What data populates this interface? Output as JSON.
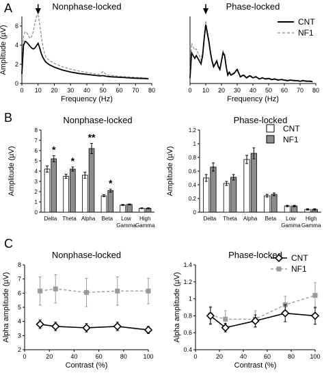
{
  "panels": [
    {
      "letter": "A"
    },
    {
      "letter": "B"
    },
    {
      "letter": "C"
    }
  ],
  "colors": {
    "cnt": "#000000",
    "nf1": "#9a9a9a",
    "cnt_bar": "#ffffff",
    "nf1_bar": "#8c8c8c"
  },
  "chart_data": [
    {
      "id": "A-left",
      "panel": "A",
      "type": "line",
      "title": "Nonphase-locked",
      "xlabel": "Frequency (Hz)",
      "ylabel": "Amplitude (µV)",
      "xlim": [
        0,
        80
      ],
      "ylim": [
        0,
        7
      ],
      "xticks": [
        "0",
        "10",
        "20",
        "30",
        "40",
        "50",
        "60",
        "70",
        "80"
      ],
      "yticks": [
        "0",
        "2",
        "4",
        "6"
      ],
      "arrow_at_x": 10,
      "series": [
        {
          "name": "CNT",
          "style": "solid",
          "x": [
            0,
            1,
            2,
            3,
            4,
            5,
            6,
            7,
            8,
            9,
            10,
            11,
            12,
            13,
            14,
            15,
            17,
            20,
            25,
            30,
            35,
            40,
            45,
            48,
            50,
            52,
            55,
            60,
            65,
            70,
            75,
            78
          ],
          "y": [
            1.0,
            4.0,
            4.4,
            4.3,
            4.1,
            3.9,
            3.7,
            3.6,
            3.7,
            3.95,
            4.2,
            3.7,
            3.1,
            2.7,
            2.4,
            2.2,
            1.95,
            1.7,
            1.4,
            1.2,
            1.05,
            0.95,
            0.85,
            0.8,
            0.82,
            0.75,
            0.7,
            0.65,
            0.6,
            0.55,
            0.52,
            0.5
          ]
        },
        {
          "name": "NF1",
          "style": "dashed",
          "x": [
            0,
            1,
            2,
            3,
            4,
            5,
            6,
            7,
            8,
            9,
            10,
            11,
            12,
            13,
            14,
            15,
            17,
            20,
            25,
            30,
            35,
            40,
            45,
            48,
            50,
            52,
            55,
            60,
            65,
            70,
            75,
            78
          ],
          "y": [
            1.3,
            5.0,
            5.4,
            5.3,
            5.0,
            4.7,
            4.9,
            5.4,
            6.3,
            7.0,
            7.2,
            6.2,
            4.9,
            3.8,
            3.1,
            2.7,
            2.4,
            2.1,
            1.75,
            1.5,
            1.3,
            1.15,
            1.0,
            0.95,
            1.25,
            0.9,
            0.85,
            0.75,
            0.7,
            0.65,
            0.6,
            0.55
          ]
        }
      ]
    },
    {
      "id": "A-right",
      "panel": "A",
      "type": "line",
      "title": "Phase-locked",
      "xlabel": "Frequency (Hz)",
      "ylabel": "",
      "xlim": [
        0,
        80
      ],
      "ylim": [
        0,
        1.2
      ],
      "xticks": [
        "0",
        "10",
        "20",
        "30",
        "40",
        "50",
        "60",
        "70",
        "80"
      ],
      "yticks": [],
      "arrow_at_x": 10,
      "legend": {
        "placement": "top-right",
        "entries": [
          "CNT",
          "NF1"
        ]
      },
      "series": [
        {
          "name": "CNT",
          "style": "solid",
          "x": [
            0,
            1,
            2,
            3,
            4,
            5,
            6,
            7,
            8,
            9,
            10,
            11,
            12,
            13,
            14,
            15,
            16,
            17,
            18,
            19,
            20,
            21,
            22,
            23,
            24,
            25,
            26,
            28,
            30,
            32,
            34,
            36,
            38,
            40,
            42,
            44,
            46,
            48,
            50,
            52,
            54,
            56,
            58,
            60,
            62,
            64,
            66,
            68,
            70,
            72,
            74,
            76,
            78
          ],
          "y": [
            0.1,
            0.55,
            0.5,
            0.45,
            0.5,
            0.45,
            0.4,
            0.35,
            0.5,
            0.8,
            1.05,
            0.9,
            0.75,
            0.55,
            0.4,
            0.3,
            0.35,
            0.4,
            0.3,
            0.25,
            0.4,
            0.55,
            0.5,
            0.3,
            0.15,
            0.2,
            0.15,
            0.18,
            0.25,
            0.12,
            0.15,
            0.1,
            0.14,
            0.1,
            0.12,
            0.08,
            0.1,
            0.08,
            0.09,
            0.07,
            0.08,
            0.06,
            0.07,
            0.06,
            0.05,
            0.06,
            0.05,
            0.05,
            0.04,
            0.05,
            0.04,
            0.04,
            0.03
          ]
        },
        {
          "name": "NF1",
          "style": "dashed",
          "x": [
            0,
            1,
            2,
            3,
            4,
            5,
            6,
            7,
            8,
            9,
            10,
            11,
            12,
            13,
            14,
            15,
            16,
            17,
            18,
            19,
            20,
            21,
            22,
            23,
            24,
            25,
            26,
            28,
            30,
            32,
            34,
            36,
            38,
            40,
            42,
            44,
            46,
            48,
            50,
            52,
            54,
            56,
            58,
            60,
            62,
            64,
            66,
            68,
            70,
            72,
            74,
            76,
            78
          ],
          "y": [
            0.2,
            0.72,
            0.65,
            0.6,
            0.62,
            0.55,
            0.5,
            0.42,
            0.55,
            0.85,
            1.12,
            0.95,
            0.78,
            0.58,
            0.42,
            0.32,
            0.36,
            0.42,
            0.32,
            0.26,
            0.42,
            0.58,
            0.52,
            0.32,
            0.17,
            0.22,
            0.16,
            0.2,
            0.27,
            0.13,
            0.16,
            0.11,
            0.15,
            0.11,
            0.13,
            0.09,
            0.11,
            0.09,
            0.1,
            0.08,
            0.09,
            0.07,
            0.08,
            0.07,
            0.06,
            0.07,
            0.06,
            0.06,
            0.05,
            0.06,
            0.05,
            0.05,
            0.04
          ]
        }
      ]
    },
    {
      "id": "B-left",
      "panel": "B",
      "type": "bar",
      "title": "Nonphase-locked",
      "xlabel": "",
      "ylabel": "Amplitude (µV)",
      "ylim": [
        0,
        8
      ],
      "yticks": [
        "0",
        "1",
        "2",
        "3",
        "4",
        "5",
        "6",
        "7",
        "8"
      ],
      "categories": [
        [
          "Delta"
        ],
        [
          "Theta"
        ],
        [
          "Alpha"
        ],
        [
          "Beta"
        ],
        [
          "Low",
          "Gamma"
        ],
        [
          "High",
          "Gamma"
        ]
      ],
      "series": [
        {
          "name": "CNT",
          "values": [
            4.2,
            3.5,
            3.6,
            1.6,
            0.7,
            0.38
          ],
          "errors": [
            0.3,
            0.2,
            0.3,
            0.1,
            0.05,
            0.04
          ]
        },
        {
          "name": "NF1",
          "values": [
            5.2,
            4.2,
            6.2,
            2.1,
            0.75,
            0.38
          ],
          "errors": [
            0.3,
            0.2,
            0.5,
            0.15,
            0.05,
            0.04
          ]
        }
      ],
      "significance": [
        "*",
        "*",
        "**",
        "*",
        "",
        ""
      ]
    },
    {
      "id": "B-right",
      "panel": "B",
      "type": "bar",
      "title": "Phase-locked",
      "xlabel": "",
      "ylabel": "Amplitude (µV)",
      "ylim": [
        0,
        1.2
      ],
      "yticks": [
        "0",
        "0.2",
        "0.4",
        "0.6",
        "0.8",
        "1",
        "1.2"
      ],
      "categories": [
        [
          "Delta"
        ],
        [
          "Theta"
        ],
        [
          "Alpha"
        ],
        [
          "Beta"
        ],
        [
          "Low",
          "Gamma"
        ],
        [
          "High",
          "Gamma"
        ]
      ],
      "legend": {
        "placement": "top-right",
        "entries": [
          "CNT",
          "NF1"
        ]
      },
      "series": [
        {
          "name": "CNT",
          "values": [
            0.5,
            0.42,
            0.77,
            0.24,
            0.09,
            0.04
          ],
          "errors": [
            0.05,
            0.03,
            0.06,
            0.02,
            0.01,
            0.01
          ]
        },
        {
          "name": "NF1",
          "values": [
            0.66,
            0.51,
            0.86,
            0.26,
            0.09,
            0.04
          ],
          "errors": [
            0.06,
            0.04,
            0.08,
            0.02,
            0.01,
            0.01
          ]
        }
      ]
    },
    {
      "id": "C-left",
      "panel": "C",
      "type": "line",
      "title": "Nonphase-locked",
      "xlabel": "Contrast (%)",
      "ylabel": "Alpha amplitude (µV)",
      "xlim": [
        0,
        100
      ],
      "ylim": [
        2,
        8
      ],
      "xticks": [
        "0",
        "20",
        "40",
        "60",
        "80",
        "100"
      ],
      "yticks": [
        "2",
        "3",
        "4",
        "5",
        "6",
        "7",
        "8"
      ],
      "series": [
        {
          "name": "CNT",
          "style": "solid",
          "marker": "diamond",
          "x": [
            12.5,
            25,
            50,
            75,
            100
          ],
          "y": [
            3.8,
            3.65,
            3.55,
            3.65,
            3.4
          ],
          "errors": [
            0.3,
            0.3,
            0.3,
            0.3,
            0.25
          ]
        },
        {
          "name": "NF1",
          "style": "dashed",
          "marker": "square",
          "x": [
            12.5,
            25,
            50,
            75,
            100
          ],
          "y": [
            6.15,
            6.3,
            6.05,
            6.15,
            6.15
          ],
          "errors": [
            1.0,
            1.0,
            1.0,
            1.0,
            0.9
          ]
        }
      ]
    },
    {
      "id": "C-right",
      "panel": "C",
      "type": "line",
      "title": "Phase-locked",
      "xlabel": "Contrast (%)",
      "ylabel": "Alpha amplitude (µV)",
      "xlim": [
        0,
        100
      ],
      "ylim": [
        0.4,
        1.4
      ],
      "xticks": [
        "0",
        "20",
        "40",
        "60",
        "80",
        "100"
      ],
      "yticks": [
        "0.4",
        "0.6",
        "0.8",
        "1",
        "1.2",
        "1.4"
      ],
      "legend": {
        "placement": "top-right",
        "entries": [
          "CNT",
          "NF1"
        ]
      },
      "series": [
        {
          "name": "CNT",
          "style": "solid",
          "marker": "diamond",
          "x": [
            12.5,
            25,
            50,
            75,
            100
          ],
          "y": [
            0.8,
            0.66,
            0.74,
            0.83,
            0.8
          ],
          "errors": [
            0.1,
            0.05,
            0.07,
            0.1,
            0.1
          ]
        },
        {
          "name": "NF1",
          "style": "dashed",
          "marker": "square",
          "x": [
            12.5,
            25,
            50,
            75,
            100
          ],
          "y": [
            0.81,
            0.76,
            0.76,
            0.93,
            1.04
          ],
          "errors": [
            0.1,
            0.1,
            0.1,
            0.1,
            0.15
          ]
        }
      ]
    }
  ]
}
